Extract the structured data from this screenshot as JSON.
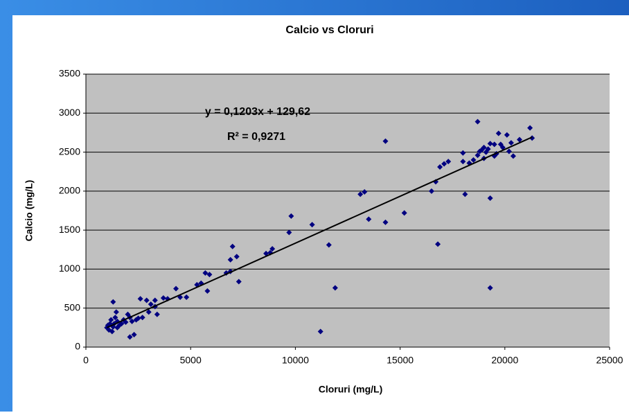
{
  "chart_data": {
    "type": "scatter",
    "title": "Calcio vs Cloruri",
    "x_label": "Cloruri (mg/L)",
    "y_label": "Calcio (mg/L)",
    "annotations": [
      "y = 0,1203x + 129,62",
      "R² = 0,9271"
    ],
    "trendline": {
      "slope": 0.1203,
      "intercept": 129.62
    },
    "xlim": [
      0,
      25000
    ],
    "xticks": [
      0,
      5000,
      10000,
      15000,
      20000,
      25000
    ],
    "ylim": [
      0,
      3500
    ],
    "yticks": [
      0,
      500,
      1000,
      1500,
      2000,
      2500,
      3000,
      3500
    ],
    "grid": true,
    "plot_background": "#c0c0c0",
    "series": [
      {
        "color": "#000080",
        "x": [
          1000,
          1050,
          1100,
          1150,
          1200,
          1250,
          1300,
          1300,
          1350,
          1400,
          1450,
          1500,
          1500,
          1600,
          1700,
          1800,
          1900,
          2000,
          2100,
          2100,
          2200,
          2300,
          2400,
          2500,
          2600,
          2700,
          2900,
          3000,
          3100,
          3300,
          3300,
          3400,
          3700,
          3900,
          4300,
          4500,
          4800,
          5300,
          5500,
          5700,
          5800,
          5900,
          6700,
          6900,
          6900,
          7000,
          7200,
          7300,
          8600,
          8800,
          8900,
          9700,
          9800,
          10800,
          11200,
          11600,
          11900,
          13100,
          13300,
          13500,
          14300,
          14300,
          15200,
          16500,
          16700,
          16800,
          16900,
          17100,
          17300,
          18000,
          18000,
          18100,
          18300,
          18500,
          18700,
          18700,
          18800,
          18900,
          19000,
          19000,
          19100,
          19200,
          19300,
          19300,
          19300,
          19500,
          19500,
          19600,
          19700,
          19800,
          19900,
          20100,
          20200,
          20300,
          20400,
          20700,
          21200,
          21300
        ],
        "values": [
          250,
          280,
          220,
          300,
          350,
          200,
          580,
          260,
          300,
          380,
          450,
          330,
          250,
          280,
          300,
          350,
          320,
          420,
          380,
          130,
          330,
          160,
          350,
          370,
          620,
          380,
          600,
          450,
          550,
          520,
          600,
          420,
          630,
          620,
          750,
          640,
          640,
          800,
          820,
          950,
          720,
          930,
          950,
          970,
          1120,
          1290,
          1160,
          840,
          1200,
          1210,
          1260,
          1470,
          1680,
          1570,
          200,
          1310,
          760,
          1960,
          1990,
          1640,
          2640,
          1600,
          1720,
          2000,
          2120,
          1320,
          2310,
          2350,
          2380,
          2490,
          2380,
          1960,
          2360,
          2400,
          2890,
          2460,
          2510,
          2530,
          2420,
          2560,
          2500,
          2540,
          2610,
          1910,
          760,
          2450,
          2600,
          2480,
          2740,
          2600,
          2560,
          2720,
          2510,
          2620,
          2450,
          2660,
          2810,
          2680
        ]
      }
    ]
  }
}
